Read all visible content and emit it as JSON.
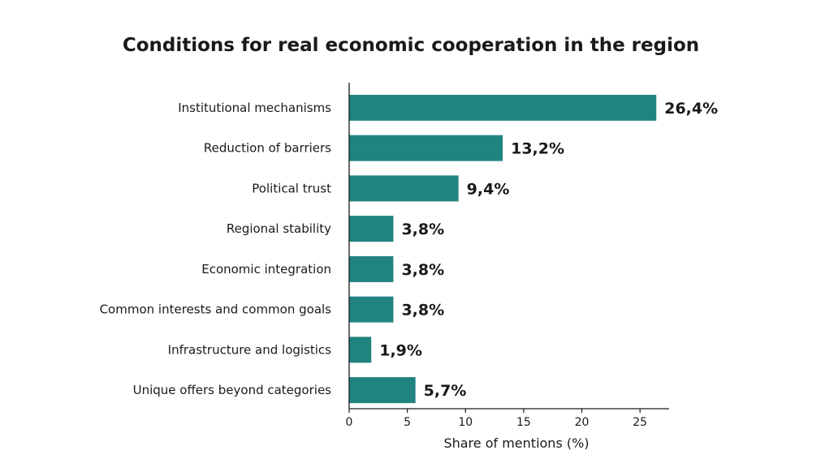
{
  "chart_data": {
    "type": "bar",
    "orientation": "horizontal",
    "title": "Conditions for real economic cooperation in the region",
    "xlabel": "Share of mentions (%)",
    "ylabel": "",
    "categories": [
      "Institutional mechanisms",
      "Reduction of barriers",
      "Political trust",
      "Regional stability",
      "Economic integration",
      "Common interests and common goals",
      "Infrastructure and logistics",
      "Unique offers beyond categories"
    ],
    "values": [
      26.4,
      13.2,
      9.4,
      3.8,
      3.8,
      3.8,
      1.9,
      5.7
    ],
    "value_labels": [
      "26,4%",
      "13,2%",
      "9,4%",
      "3,8%",
      "3,8%",
      "3,8%",
      "1,9%",
      "5,7%"
    ],
    "xticks": [
      0,
      5,
      10,
      15,
      20,
      25
    ],
    "xtick_labels": [
      "0",
      "5",
      "10",
      "15",
      "20",
      "25"
    ],
    "xlim": [
      0,
      27.5
    ],
    "grid": false,
    "bar_color": "#218380"
  }
}
